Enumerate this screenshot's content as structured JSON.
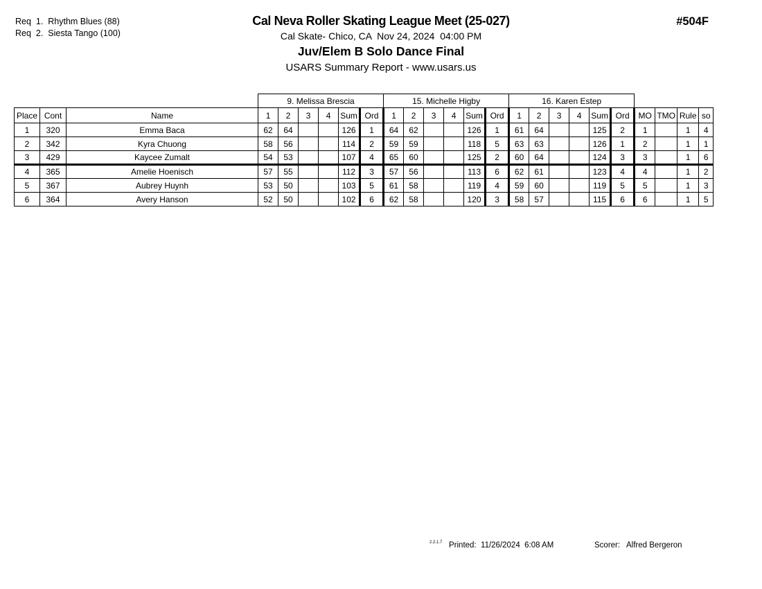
{
  "header": {
    "requirements": [
      "Req  1.  Rhythm Blues (88)",
      "Req  2.  Siesta Tango (100)"
    ],
    "title": "Cal Neva Roller Skating League Meet (25-027)",
    "venue": "Cal Skate- Chico, CA  Nov 24, 2024  04:00 PM",
    "event": "Juv/Elem B Solo Dance Final",
    "report": "USARS Summary Report - www.usars.us",
    "event_number": "#504F"
  },
  "table": {
    "left_headers": [
      "Place",
      "Cont",
      "Name"
    ],
    "judges": [
      "9.  Melissa Brescia",
      "15.  Michelle Higby",
      "16.  Karen Estep"
    ],
    "judge_columns": [
      "1",
      "2",
      "3",
      "4",
      "Sum",
      "Ord"
    ],
    "right_headers": [
      "MO",
      "TMO",
      "Rule",
      "so"
    ],
    "rows": [
      {
        "place": "1",
        "cont": "320",
        "name": "Emma Baca",
        "bold": true,
        "judges": [
          [
            "62",
            "64",
            "",
            "",
            "126",
            "1"
          ],
          [
            "64",
            "62",
            "",
            "",
            "126",
            "1"
          ],
          [
            "61",
            "64",
            "",
            "",
            "125",
            "2"
          ]
        ],
        "mo": "1",
        "tmo": "",
        "rule": "1",
        "so": "4"
      },
      {
        "place": "2",
        "cont": "342",
        "name": "Kyra Chuong",
        "bold": true,
        "judges": [
          [
            "58",
            "56",
            "",
            "",
            "114",
            "2"
          ],
          [
            "59",
            "59",
            "",
            "",
            "118",
            "5"
          ],
          [
            "63",
            "63",
            "",
            "",
            "126",
            "1"
          ]
        ],
        "mo": "2",
        "tmo": "",
        "rule": "1",
        "so": "1"
      },
      {
        "place": "3",
        "cont": "429",
        "name": "Kaycee Zumalt",
        "bold": true,
        "judges": [
          [
            "54",
            "53",
            "",
            "",
            "107",
            "4"
          ],
          [
            "65",
            "60",
            "",
            "",
            "125",
            "2"
          ],
          [
            "60",
            "64",
            "",
            "",
            "124",
            "3"
          ]
        ],
        "mo": "3",
        "tmo": "",
        "rule": "1",
        "so": "6"
      },
      {
        "place": "4",
        "cont": "365",
        "name": "Amelie Hoenisch",
        "bold": false,
        "judges": [
          [
            "57",
            "55",
            "",
            "",
            "112",
            "3"
          ],
          [
            "57",
            "56",
            "",
            "",
            "113",
            "6"
          ],
          [
            "62",
            "61",
            "",
            "",
            "123",
            "4"
          ]
        ],
        "mo": "4",
        "tmo": "",
        "rule": "1",
        "so": "2"
      },
      {
        "place": "5",
        "cont": "367",
        "name": "Aubrey Huynh",
        "bold": false,
        "judges": [
          [
            "53",
            "50",
            "",
            "",
            "103",
            "5"
          ],
          [
            "61",
            "58",
            "",
            "",
            "119",
            "4"
          ],
          [
            "59",
            "60",
            "",
            "",
            "119",
            "5"
          ]
        ],
        "mo": "5",
        "tmo": "",
        "rule": "1",
        "so": "3"
      },
      {
        "place": "6",
        "cont": "364",
        "name": "Avery Hanson",
        "bold": false,
        "judges": [
          [
            "52",
            "50",
            "",
            "",
            "102",
            "6"
          ],
          [
            "62",
            "58",
            "",
            "",
            "120",
            "3"
          ],
          [
            "58",
            "57",
            "",
            "",
            "115",
            "6"
          ]
        ],
        "mo": "6",
        "tmo": "",
        "rule": "1",
        "so": "5"
      }
    ]
  },
  "footer": {
    "version": "2.2.1.7",
    "printed": "Printed:  11/26/2024  6:08 AM",
    "scorer": "Scorer:   Alfred Bergeron"
  }
}
